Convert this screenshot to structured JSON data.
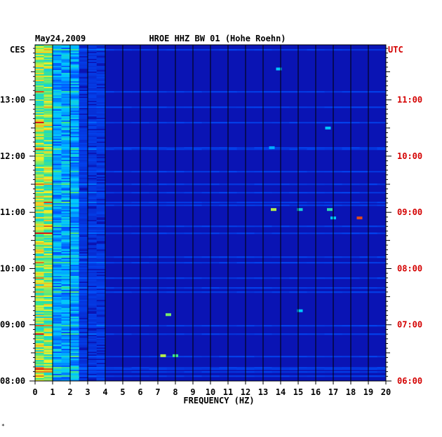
{
  "chart_data": {
    "type": "heatmap",
    "header": {
      "date": "May24,2009",
      "title": "HROE HHZ BW 01 (Hohe Roehn)"
    },
    "left_timezone": "CES",
    "right_timezone": "UTC",
    "xlabel": "FREQUENCY (HZ)",
    "x_ticks": [
      "0",
      "1",
      "2",
      "3",
      "4",
      "5",
      "6",
      "7",
      "8",
      "9",
      "10",
      "11",
      "12",
      "13",
      "14",
      "15",
      "16",
      "17",
      "18",
      "19",
      "20"
    ],
    "xlim": [
      0,
      20
    ],
    "left_time_ticks": [
      "13:00",
      "12:00",
      "11:00",
      "10:00",
      "09:00",
      "08:00"
    ],
    "right_time_ticks": [
      "11:00",
      "10:00",
      "09:00",
      "08:00",
      "07:00",
      "06:00"
    ],
    "time_tick_hours_local": [
      13,
      12,
      11,
      10,
      9,
      8
    ],
    "ylim_hours_local": [
      8.0,
      13.98
    ],
    "colors": {
      "background": "#0a14b4",
      "grid": "#000000",
      "utc_label": "#d40000"
    },
    "hot_spots": [
      {
        "f": 13.6,
        "t": 11.05,
        "level": 0.75
      },
      {
        "f": 16.8,
        "t": 11.05,
        "level": 0.6
      },
      {
        "f": 18.5,
        "t": 10.9,
        "level": 0.95
      },
      {
        "f": 15.1,
        "t": 11.05,
        "level": 0.55
      },
      {
        "f": 17.0,
        "t": 10.9,
        "level": 0.5
      },
      {
        "f": 15.1,
        "t": 9.25,
        "level": 0.5
      },
      {
        "f": 7.6,
        "t": 9.18,
        "level": 0.7
      },
      {
        "f": 7.3,
        "t": 8.45,
        "level": 0.75
      },
      {
        "f": 8.0,
        "t": 8.45,
        "level": 0.65
      },
      {
        "f": 16.7,
        "t": 12.5,
        "level": 0.5
      },
      {
        "f": 13.9,
        "t": 13.55,
        "level": 0.5
      },
      {
        "f": 13.5,
        "t": 12.15,
        "level": 0.45
      }
    ]
  },
  "footer_mark": "*"
}
